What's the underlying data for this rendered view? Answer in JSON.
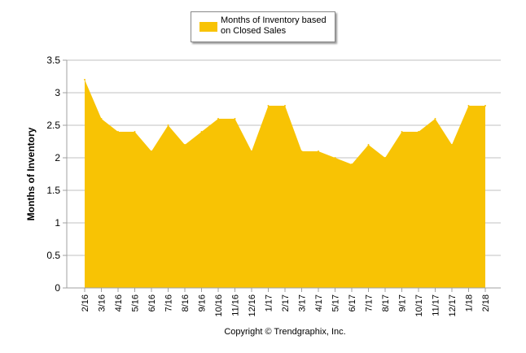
{
  "colors": {
    "area_fill": "#F8C304",
    "gridline": "#C0C0C0",
    "axis": "#A0A0A0",
    "text": "#000000",
    "background": "#FFFFFF"
  },
  "legend": {
    "label": "Months of Inventory based on Closed Sales",
    "placement": "top-center"
  },
  "footer": {
    "copyright": "Copyright © Trendgraphix, Inc."
  },
  "chart_data": {
    "type": "area",
    "title": "",
    "xlabel": "",
    "ylabel": "Months of Inventory",
    "ylim": [
      0,
      3.5
    ],
    "yticks": [
      "0",
      "0.5",
      "1",
      "1.5",
      "2",
      "2.5",
      "3",
      "3.5"
    ],
    "grid": true,
    "categories": [
      "2/16",
      "3/16",
      "4/16",
      "5/16",
      "6/16",
      "7/16",
      "8/16",
      "9/16",
      "10/16",
      "11/16",
      "12/16",
      "1/17",
      "2/17",
      "3/17",
      "4/17",
      "5/17",
      "6/17",
      "7/17",
      "8/17",
      "9/17",
      "10/17",
      "11/17",
      "12/17",
      "1/18",
      "2/18"
    ],
    "series": [
      {
        "name": "Months of Inventory based on Closed Sales",
        "values": [
          3.2,
          2.6,
          2.4,
          2.4,
          2.1,
          2.5,
          2.2,
          2.4,
          2.6,
          2.6,
          2.1,
          2.8,
          2.8,
          2.1,
          2.1,
          2.0,
          1.9,
          2.2,
          2.0,
          2.4,
          2.4,
          2.6,
          2.2,
          2.8,
          2.8
        ]
      }
    ]
  }
}
